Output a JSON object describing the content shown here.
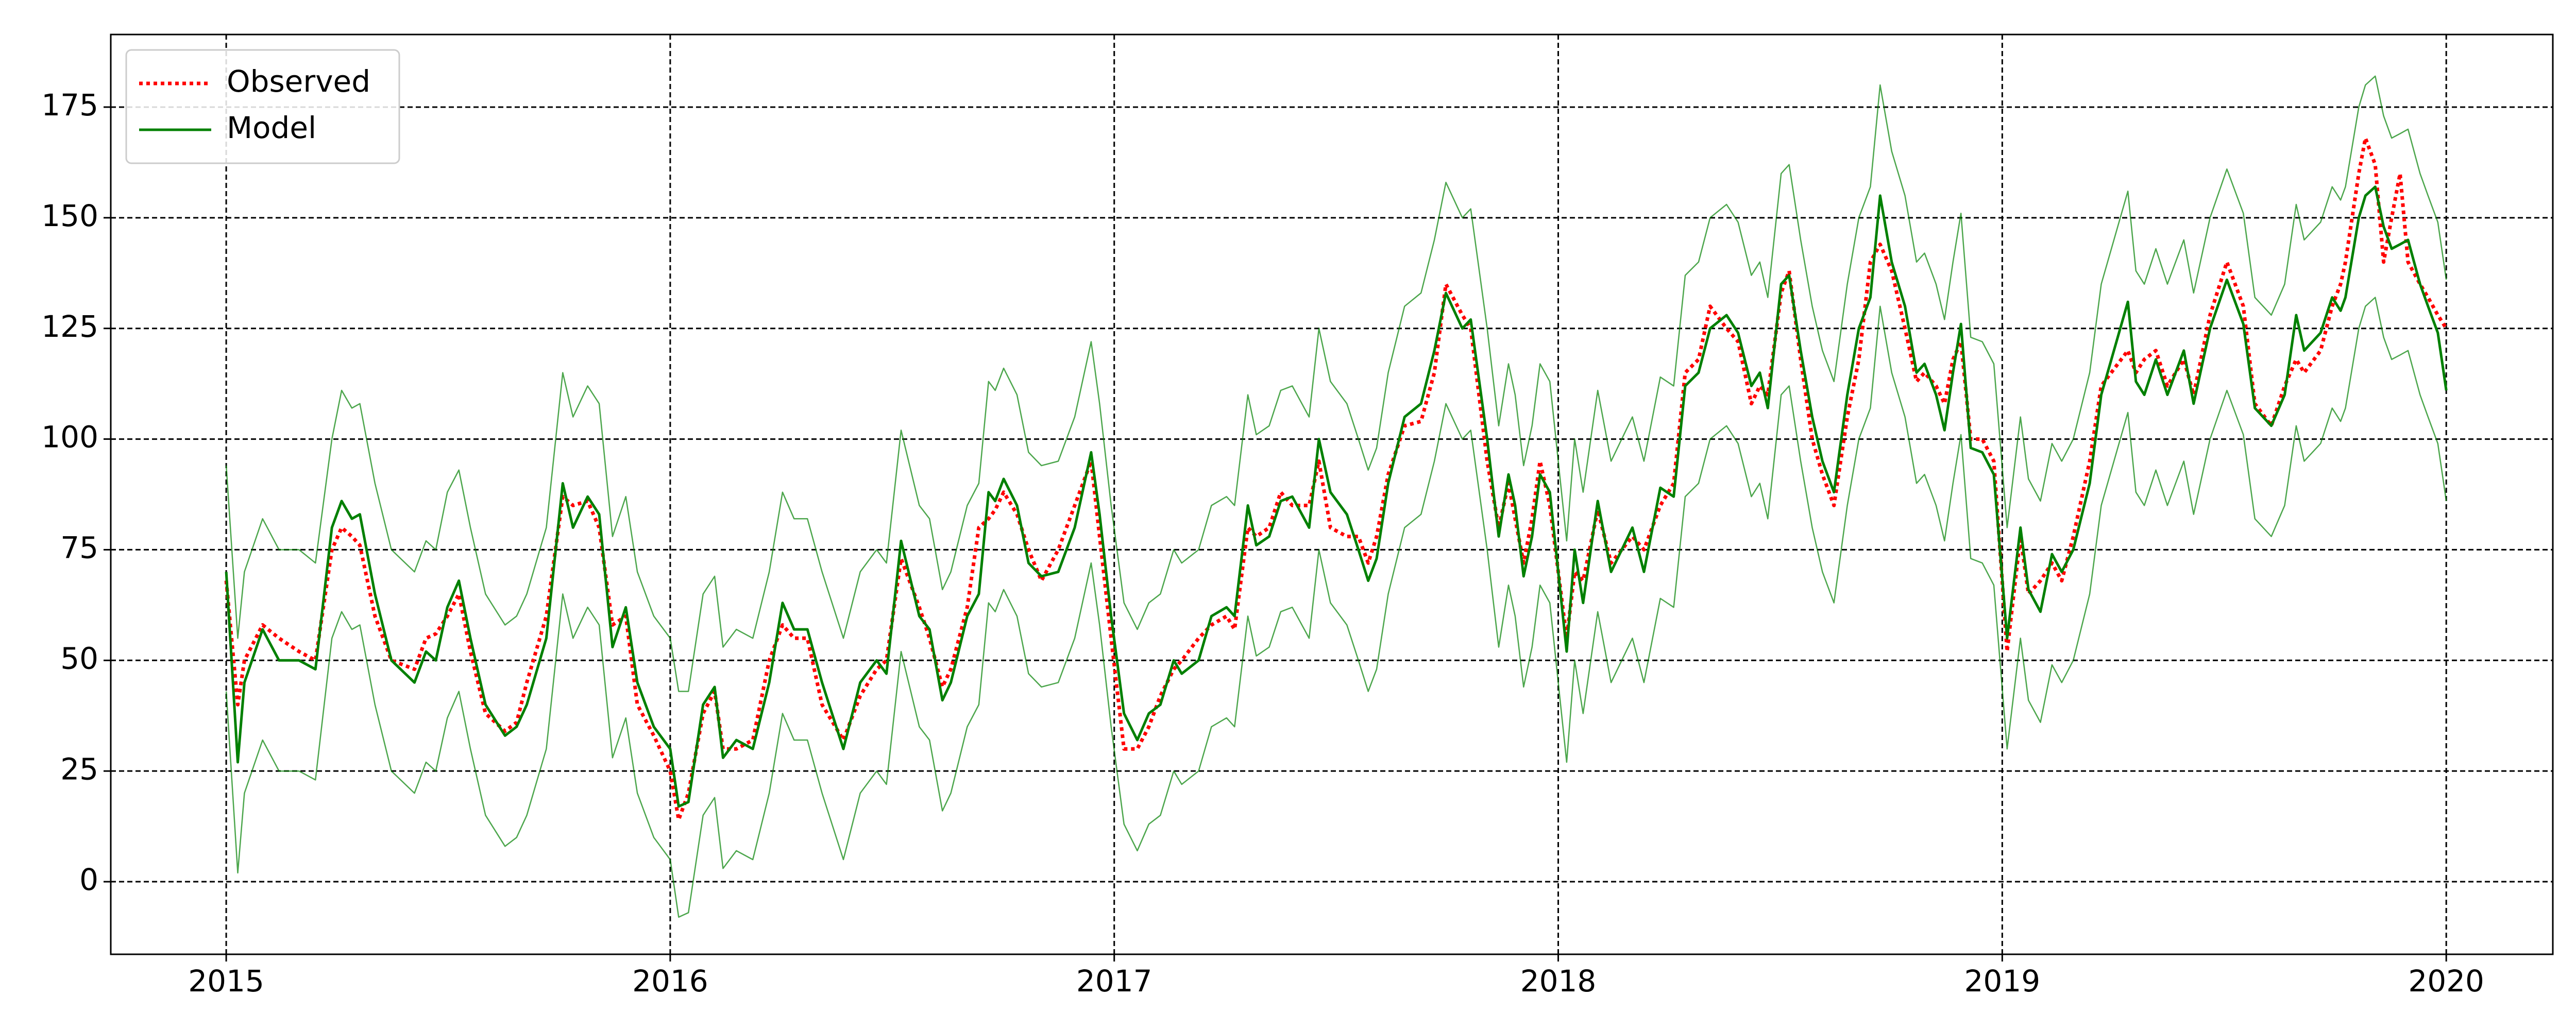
{
  "chart_data": {
    "type": "line",
    "x": [
      2015.0,
      2015.026,
      2015.041,
      2015.082,
      2015.119,
      2015.164,
      2015.201,
      2015.238,
      2015.26,
      2015.283,
      2015.301,
      2015.335,
      2015.372,
      2015.424,
      2015.45,
      2015.472,
      2015.498,
      2015.524,
      2015.55,
      2015.584,
      2015.628,
      2015.654,
      2015.677,
      2015.721,
      2015.758,
      2015.781,
      2015.814,
      2015.84,
      2015.87,
      2015.9,
      2015.926,
      2015.963,
      2016.0,
      2016.019,
      2016.041,
      2016.074,
      2016.1,
      2016.119,
      2016.149,
      2016.186,
      2016.223,
      2016.253,
      2016.279,
      2016.309,
      2016.342,
      2016.39,
      2016.428,
      2016.465,
      2016.487,
      2016.52,
      2016.561,
      2016.584,
      2016.613,
      2016.632,
      2016.669,
      2016.695,
      2016.717,
      2016.732,
      2016.751,
      2016.781,
      2016.807,
      2016.836,
      2016.874,
      2016.911,
      2016.948,
      2016.967,
      2016.993,
      2017.022,
      2017.052,
      2017.078,
      2017.104,
      2017.134,
      2017.152,
      2017.19,
      2017.219,
      2017.253,
      2017.271,
      2017.301,
      2017.32,
      2017.349,
      2017.375,
      2017.401,
      2017.439,
      2017.461,
      2017.487,
      2017.524,
      2017.55,
      2017.572,
      2017.591,
      2017.617,
      2017.654,
      2017.691,
      2017.721,
      2017.747,
      2017.784,
      2017.803,
      2017.84,
      2017.866,
      2017.888,
      2017.903,
      2017.922,
      2017.941,
      2017.959,
      2017.981,
      2018.019,
      2018.037,
      2018.056,
      2018.089,
      2018.119,
      2018.167,
      2018.193,
      2018.23,
      2018.26,
      2018.286,
      2018.316,
      2018.342,
      2018.379,
      2018.405,
      2018.435,
      2018.454,
      2018.472,
      2018.502,
      2018.52,
      2018.546,
      2018.572,
      2018.595,
      2018.621,
      2018.651,
      2018.677,
      2018.703,
      2018.725,
      2018.751,
      2018.781,
      2018.807,
      2018.825,
      2018.851,
      2018.87,
      2018.889,
      2018.907,
      2018.929,
      2018.955,
      2018.981,
      2019.011,
      2019.041,
      2019.059,
      2019.086,
      2019.112,
      2019.134,
      2019.16,
      2019.197,
      2019.223,
      2019.283,
      2019.301,
      2019.32,
      2019.346,
      2019.372,
      2019.409,
      2019.431,
      2019.468,
      2019.506,
      2019.543,
      2019.569,
      2019.606,
      2019.636,
      2019.662,
      2019.68,
      2019.717,
      2019.743,
      2019.762,
      2019.773,
      2019.803,
      2019.818,
      2019.84,
      2019.859,
      2019.877,
      2019.896,
      2019.914,
      2019.941,
      2019.959,
      2019.981,
      2020.0
    ],
    "series": [
      {
        "name": "Observed",
        "color": "#ff0000",
        "linestyle": "dotted",
        "width": 7,
        "values": [
          68,
          40,
          50,
          58,
          55,
          52,
          50,
          75,
          80,
          78,
          76,
          60,
          50,
          48,
          55,
          56,
          60,
          65,
          52,
          38,
          34,
          36,
          45,
          60,
          87,
          85,
          86,
          80,
          58,
          60,
          40,
          33,
          25,
          14,
          20,
          38,
          43,
          30,
          30,
          32,
          50,
          58,
          55,
          55,
          40,
          32,
          42,
          48,
          50,
          73,
          62,
          55,
          44,
          48,
          62,
          80,
          82,
          84,
          88,
          83,
          75,
          68,
          75,
          85,
          95,
          78,
          55,
          30,
          30,
          35,
          42,
          48,
          50,
          55,
          58,
          60,
          57,
          80,
          78,
          80,
          88,
          85,
          85,
          95,
          80,
          78,
          78,
          72,
          78,
          92,
          103,
          104,
          115,
          135,
          128,
          125,
          95,
          80,
          90,
          82,
          72,
          82,
          95,
          85,
          55,
          70,
          68,
          84,
          72,
          78,
          75,
          85,
          90,
          115,
          118,
          130,
          125,
          122,
          108,
          112,
          110,
          133,
          138,
          118,
          100,
          92,
          85,
          105,
          118,
          140,
          144,
          138,
          125,
          113,
          115,
          112,
          108,
          118,
          122,
          100,
          100,
          95,
          52,
          78,
          65,
          68,
          72,
          68,
          78,
          95,
          112,
          120,
          115,
          118,
          120,
          112,
          118,
          110,
          128,
          140,
          130,
          108,
          103,
          112,
          118,
          115,
          120,
          130,
          135,
          140,
          160,
          168,
          162,
          140,
          150,
          160,
          140,
          135,
          132,
          128,
          125
        ]
      },
      {
        "name": "Model",
        "color": "#008000",
        "linestyle": "solid",
        "width": 5,
        "values": [
          70,
          27,
          45,
          57,
          50,
          50,
          48,
          80,
          86,
          82,
          83,
          65,
          50,
          45,
          52,
          50,
          62,
          68,
          55,
          40,
          33,
          35,
          40,
          55,
          90,
          80,
          87,
          83,
          53,
          62,
          45,
          35,
          30,
          17,
          18,
          40,
          44,
          28,
          32,
          30,
          45,
          63,
          57,
          57,
          45,
          30,
          45,
          50,
          47,
          77,
          60,
          57,
          41,
          45,
          60,
          65,
          88,
          86,
          91,
          85,
          72,
          69,
          70,
          80,
          97,
          83,
          60,
          38,
          32,
          38,
          40,
          50,
          47,
          50,
          60,
          62,
          60,
          85,
          76,
          78,
          86,
          87,
          80,
          100,
          88,
          83,
          75,
          68,
          73,
          90,
          105,
          108,
          120,
          133,
          125,
          127,
          100,
          78,
          92,
          85,
          69,
          78,
          92,
          88,
          52,
          75,
          63,
          86,
          70,
          80,
          70,
          89,
          87,
          112,
          115,
          125,
          128,
          124,
          112,
          115,
          107,
          135,
          137,
          120,
          105,
          95,
          88,
          110,
          125,
          132,
          155,
          140,
          130,
          115,
          117,
          110,
          102,
          115,
          126,
          98,
          97,
          92,
          55,
          80,
          66,
          61,
          74,
          70,
          75,
          90,
          110,
          131,
          113,
          110,
          118,
          110,
          120,
          108,
          125,
          136,
          126,
          107,
          103,
          110,
          128,
          120,
          124,
          132,
          129,
          132,
          150,
          155,
          157,
          148,
          143,
          144,
          145,
          135,
          130,
          124,
          111
        ]
      },
      {
        "color": "#008000",
        "linestyle": "solid",
        "width": 2.5,
        "opacity": 0.7,
        "values": [
          94,
          55,
          70,
          82,
          75,
          75,
          72,
          100,
          111,
          107,
          108,
          90,
          75,
          70,
          77,
          75,
          88,
          93,
          80,
          65,
          58,
          60,
          65,
          80,
          115,
          105,
          112,
          108,
          78,
          87,
          70,
          60,
          55,
          43,
          43,
          65,
          69,
          53,
          57,
          55,
          70,
          88,
          82,
          82,
          70,
          55,
          70,
          75,
          72,
          102,
          85,
          82,
          66,
          70,
          85,
          90,
          113,
          111,
          116,
          110,
          97,
          94,
          95,
          105,
          122,
          108,
          85,
          63,
          57,
          63,
          65,
          75,
          72,
          75,
          85,
          87,
          85,
          110,
          101,
          103,
          111,
          112,
          105,
          125,
          113,
          108,
          100,
          93,
          98,
          115,
          130,
          133,
          145,
          158,
          150,
          152,
          125,
          103,
          117,
          110,
          94,
          103,
          117,
          113,
          77,
          100,
          88,
          111,
          95,
          105,
          95,
          114,
          112,
          137,
          140,
          150,
          153,
          149,
          137,
          140,
          132,
          160,
          162,
          145,
          130,
          120,
          113,
          135,
          150,
          157,
          180,
          165,
          155,
          140,
          142,
          135,
          127,
          140,
          151,
          123,
          122,
          117,
          80,
          105,
          91,
          86,
          99,
          95,
          100,
          115,
          135,
          156,
          138,
          135,
          143,
          135,
          145,
          133,
          150,
          161,
          151,
          132,
          128,
          135,
          153,
          145,
          149,
          157,
          154,
          157,
          175,
          180,
          182,
          173,
          168,
          169,
          170,
          160,
          155,
          149,
          136
        ]
      },
      {
        "color": "#008000",
        "linestyle": "solid",
        "width": 2.5,
        "opacity": 0.7,
        "values": [
          43,
          2,
          20,
          32,
          25,
          25,
          23,
          55,
          61,
          57,
          58,
          40,
          25,
          20,
          27,
          25,
          37,
          43,
          30,
          15,
          8,
          10,
          15,
          30,
          65,
          55,
          62,
          58,
          28,
          37,
          20,
          10,
          5,
          -8,
          -7,
          15,
          19,
          3,
          7,
          5,
          20,
          38,
          32,
          32,
          20,
          5,
          20,
          25,
          22,
          52,
          35,
          32,
          16,
          20,
          35,
          40,
          63,
          61,
          66,
          60,
          47,
          44,
          45,
          55,
          72,
          58,
          35,
          13,
          7,
          13,
          15,
          25,
          22,
          25,
          35,
          37,
          35,
          60,
          51,
          53,
          61,
          62,
          55,
          75,
          63,
          58,
          50,
          43,
          48,
          65,
          80,
          83,
          95,
          108,
          100,
          102,
          75,
          53,
          67,
          60,
          44,
          53,
          67,
          63,
          27,
          50,
          38,
          61,
          45,
          55,
          45,
          64,
          62,
          87,
          90,
          100,
          103,
          99,
          87,
          90,
          82,
          110,
          112,
          95,
          80,
          70,
          63,
          85,
          100,
          107,
          130,
          115,
          105,
          90,
          92,
          85,
          77,
          90,
          101,
          73,
          72,
          67,
          30,
          55,
          41,
          36,
          49,
          45,
          50,
          65,
          85,
          106,
          88,
          85,
          93,
          85,
          95,
          83,
          100,
          111,
          101,
          82,
          78,
          85,
          103,
          95,
          99,
          107,
          104,
          107,
          125,
          130,
          132,
          123,
          118,
          119,
          120,
          110,
          105,
          99,
          86
        ]
      }
    ],
    "xlim": [
      2014.74,
      2020.24
    ],
    "xticks": [
      2015,
      2016,
      2017,
      2018,
      2019,
      2020
    ],
    "ylim": [
      -16.4,
      191.4
    ],
    "yticks": [
      0,
      25,
      50,
      75,
      100,
      125,
      150,
      175
    ],
    "grid": true,
    "legend": "upper left"
  }
}
